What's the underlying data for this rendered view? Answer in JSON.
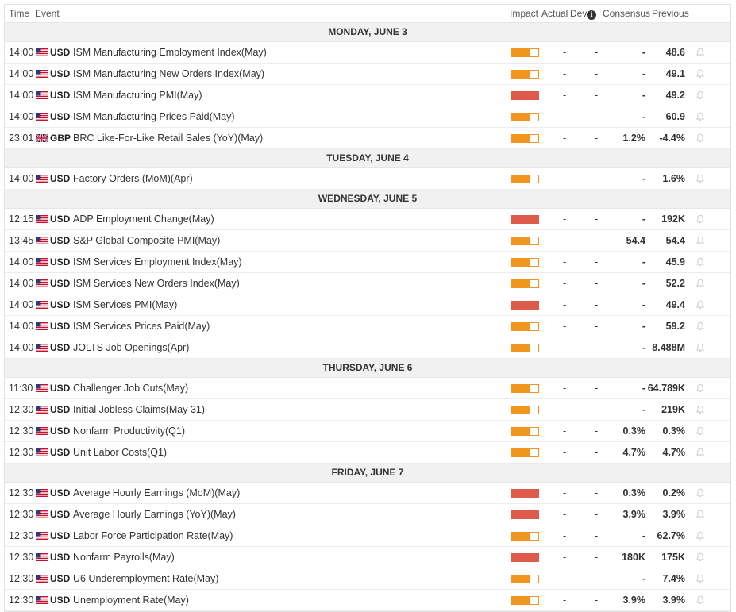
{
  "header": {
    "time": "Time",
    "event": "Event",
    "impact": "Impact",
    "actual": "Actual",
    "dev": "Dev",
    "consensus": "Consensus",
    "previous": "Previous"
  },
  "colors": {
    "medium_impact": "#f0961e",
    "high_impact": "#de5a4a"
  },
  "sections": [
    {
      "day": "MONDAY, JUNE 3",
      "rows": [
        {
          "time": "14:00",
          "flag": "us-flag-icon",
          "currency": "USD",
          "event": "ISM Manufacturing Employment Index(May)",
          "impact": "medium",
          "actual": "-",
          "dev": "-",
          "consensus": "-",
          "previous": "48.6"
        },
        {
          "time": "14:00",
          "flag": "us-flag-icon",
          "currency": "USD",
          "event": "ISM Manufacturing New Orders Index(May)",
          "impact": "medium",
          "actual": "-",
          "dev": "-",
          "consensus": "-",
          "previous": "49.1"
        },
        {
          "time": "14:00",
          "flag": "us-flag-icon",
          "currency": "USD",
          "event": "ISM Manufacturing PMI(May)",
          "impact": "high",
          "actual": "-",
          "dev": "-",
          "consensus": "-",
          "previous": "49.2"
        },
        {
          "time": "14:00",
          "flag": "us-flag-icon",
          "currency": "USD",
          "event": "ISM Manufacturing Prices Paid(May)",
          "impact": "medium",
          "actual": "-",
          "dev": "-",
          "consensus": "-",
          "previous": "60.9"
        },
        {
          "time": "23:01",
          "flag": "uk-flag-icon",
          "currency": "GBP",
          "event": "BRC Like-For-Like Retail Sales (YoY)(May)",
          "impact": "medium",
          "actual": "-",
          "dev": "-",
          "consensus": "1.2%",
          "previous": "-4.4%"
        }
      ]
    },
    {
      "day": "TUESDAY, JUNE 4",
      "rows": [
        {
          "time": "14:00",
          "flag": "us-flag-icon",
          "currency": "USD",
          "event": "Factory Orders (MoM)(Apr)",
          "impact": "medium",
          "actual": "-",
          "dev": "-",
          "consensus": "-",
          "previous": "1.6%"
        }
      ]
    },
    {
      "day": "WEDNESDAY, JUNE 5",
      "rows": [
        {
          "time": "12:15",
          "flag": "us-flag-icon",
          "currency": "USD",
          "event": "ADP Employment Change(May)",
          "impact": "high",
          "actual": "-",
          "dev": "-",
          "consensus": "-",
          "previous": "192K"
        },
        {
          "time": "13:45",
          "flag": "us-flag-icon",
          "currency": "USD",
          "event": "S&P Global Composite PMI(May)",
          "impact": "medium",
          "actual": "-",
          "dev": "-",
          "consensus": "54.4",
          "previous": "54.4"
        },
        {
          "time": "14:00",
          "flag": "us-flag-icon",
          "currency": "USD",
          "event": "ISM Services Employment Index(May)",
          "impact": "medium",
          "actual": "-",
          "dev": "-",
          "consensus": "-",
          "previous": "45.9"
        },
        {
          "time": "14:00",
          "flag": "us-flag-icon",
          "currency": "USD",
          "event": "ISM Services New Orders Index(May)",
          "impact": "medium",
          "actual": "-",
          "dev": "-",
          "consensus": "-",
          "previous": "52.2"
        },
        {
          "time": "14:00",
          "flag": "us-flag-icon",
          "currency": "USD",
          "event": "ISM Services PMI(May)",
          "impact": "high",
          "actual": "-",
          "dev": "-",
          "consensus": "-",
          "previous": "49.4"
        },
        {
          "time": "14:00",
          "flag": "us-flag-icon",
          "currency": "USD",
          "event": "ISM Services Prices Paid(May)",
          "impact": "medium",
          "actual": "-",
          "dev": "-",
          "consensus": "-",
          "previous": "59.2"
        },
        {
          "time": "14:00",
          "flag": "us-flag-icon",
          "currency": "USD",
          "event": "JOLTS Job Openings(Apr)",
          "impact": "medium",
          "actual": "-",
          "dev": "-",
          "consensus": "-",
          "previous": "8.488M"
        }
      ]
    },
    {
      "day": "THURSDAY, JUNE 6",
      "rows": [
        {
          "time": "11:30",
          "flag": "us-flag-icon",
          "currency": "USD",
          "event": "Challenger Job Cuts(May)",
          "impact": "medium",
          "actual": "-",
          "dev": "-",
          "consensus": "-",
          "previous": "64.789K"
        },
        {
          "time": "12:30",
          "flag": "us-flag-icon",
          "currency": "USD",
          "event": "Initial Jobless Claims(May 31)",
          "impact": "medium",
          "actual": "-",
          "dev": "-",
          "consensus": "-",
          "previous": "219K"
        },
        {
          "time": "12:30",
          "flag": "us-flag-icon",
          "currency": "USD",
          "event": "Nonfarm Productivity(Q1)",
          "impact": "medium",
          "actual": "-",
          "dev": "-",
          "consensus": "0.3%",
          "previous": "0.3%"
        },
        {
          "time": "12:30",
          "flag": "us-flag-icon",
          "currency": "USD",
          "event": "Unit Labor Costs(Q1)",
          "impact": "medium",
          "actual": "-",
          "dev": "-",
          "consensus": "4.7%",
          "previous": "4.7%"
        }
      ]
    },
    {
      "day": "FRIDAY, JUNE 7",
      "rows": [
        {
          "time": "12:30",
          "flag": "us-flag-icon",
          "currency": "USD",
          "event": "Average Hourly Earnings (MoM)(May)",
          "impact": "high",
          "actual": "-",
          "dev": "-",
          "consensus": "0.3%",
          "previous": "0.2%"
        },
        {
          "time": "12:30",
          "flag": "us-flag-icon",
          "currency": "USD",
          "event": "Average Hourly Earnings (YoY)(May)",
          "impact": "high",
          "actual": "-",
          "dev": "-",
          "consensus": "3.9%",
          "previous": "3.9%"
        },
        {
          "time": "12:30",
          "flag": "us-flag-icon",
          "currency": "USD",
          "event": "Labor Force Participation Rate(May)",
          "impact": "medium",
          "actual": "-",
          "dev": "-",
          "consensus": "-",
          "previous": "62.7%"
        },
        {
          "time": "12:30",
          "flag": "us-flag-icon",
          "currency": "USD",
          "event": "Nonfarm Payrolls(May)",
          "impact": "high",
          "actual": "-",
          "dev": "-",
          "consensus": "180K",
          "previous": "175K"
        },
        {
          "time": "12:30",
          "flag": "us-flag-icon",
          "currency": "USD",
          "event": "U6 Underemployment Rate(May)",
          "impact": "medium",
          "actual": "-",
          "dev": "-",
          "consensus": "-",
          "previous": "7.4%"
        },
        {
          "time": "12:30",
          "flag": "us-flag-icon",
          "currency": "USD",
          "event": "Unemployment Rate(May)",
          "impact": "medium",
          "actual": "-",
          "dev": "-",
          "consensus": "3.9%",
          "previous": "3.9%"
        }
      ]
    }
  ]
}
